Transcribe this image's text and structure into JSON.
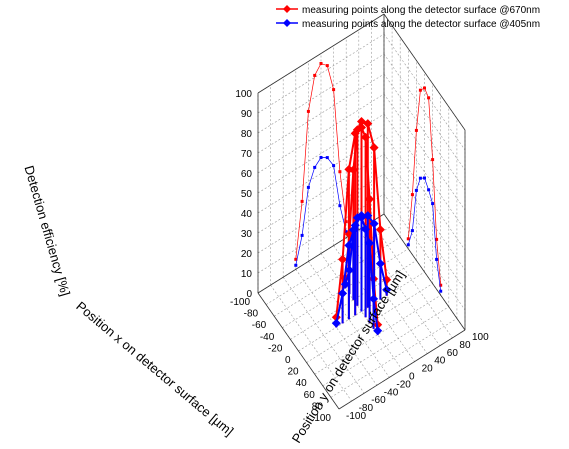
{
  "chart_data": {
    "type": "line3d",
    "legend": [
      {
        "name": "measuring points along the detector surface @670nm",
        "color": "#ff0000"
      },
      {
        "name": "measuring points along the detector surface @405nm",
        "color": "#0000ff"
      }
    ],
    "axes": {
      "x": {
        "label": "Position x on detector surface [µm]",
        "range": [
          -100,
          100
        ],
        "ticks": [
          "-100",
          "-80",
          "-60",
          "-40",
          "-20",
          "0",
          "20",
          "40",
          "60",
          "80",
          "100"
        ]
      },
      "y": {
        "label": "Position y on detector surface [µm]",
        "range": [
          -100,
          100
        ],
        "ticks": [
          "-100",
          "-80",
          "-60",
          "-40",
          "-20",
          "0",
          "20",
          "40",
          "60",
          "80",
          "100"
        ]
      },
      "z": {
        "label": "Detection efficiency [%]",
        "range": [
          0,
          100
        ],
        "ticks": [
          "0",
          "10",
          "20",
          "30",
          "40",
          "50",
          "60",
          "70",
          "80",
          "90",
          "100"
        ]
      }
    },
    "grid": true,
    "series": [
      {
        "name": "measuring points along the detector surface @670nm",
        "color": "#ff0000",
        "scan_along_x": {
          "x": [
            -40,
            -30,
            -20,
            -10,
            0,
            10,
            20,
            30,
            40
          ],
          "y": [
            0,
            0,
            0,
            0,
            0,
            0,
            0,
            0,
            0
          ],
          "z": [
            5,
            30,
            65,
            88,
            92,
            90,
            62,
            25,
            5
          ]
        },
        "scan_along_y": {
          "x": [
            0,
            0,
            0,
            0,
            0,
            0,
            0,
            0,
            0
          ],
          "y": [
            -40,
            -30,
            -20,
            -10,
            0,
            10,
            20,
            30,
            40
          ],
          "z": [
            5,
            32,
            75,
            91,
            95,
            92,
            78,
            35,
            8
          ]
        }
      },
      {
        "name": "measuring points along the detector surface @405nm",
        "color": "#0000ff",
        "scan_along_x": {
          "x": [
            -40,
            -30,
            -20,
            -10,
            0,
            10,
            20,
            30,
            40
          ],
          "y": [
            0,
            0,
            0,
            0,
            0,
            0,
            0,
            0,
            0
          ],
          "z": [
            2,
            12,
            35,
            44,
            47,
            44,
            40,
            15,
            2
          ]
        },
        "scan_along_y": {
          "x": [
            0,
            0,
            0,
            0,
            0,
            0,
            0,
            0,
            0
          ],
          "y": [
            -40,
            -30,
            -20,
            -10,
            0,
            10,
            20,
            30,
            40
          ],
          "z": [
            2,
            15,
            37,
            45,
            48,
            46,
            40,
            18,
            3
          ]
        }
      }
    ]
  }
}
